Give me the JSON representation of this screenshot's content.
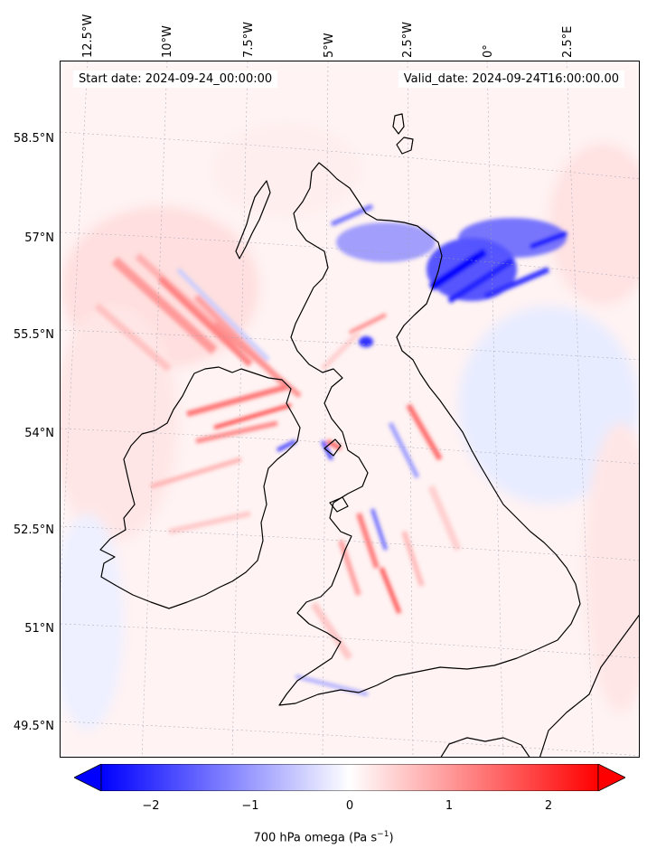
{
  "map": {
    "header_left": "Start date: 2024-09-24_00:00:00",
    "header_right": "Valid_date: 2024-09-24T16:00:00.00",
    "lon_labels": [
      "12.5°W",
      "10°W",
      "7.5°W",
      "5°W",
      "2.5°W",
      "0°",
      "2.5°E"
    ],
    "lat_labels": [
      "58.5°N",
      "57°N",
      "55.5°N",
      "54°N",
      "52.5°N",
      "51°N",
      "49.5°N"
    ],
    "colors": {
      "negative": "#0000ff",
      "neutral": "#ffffff",
      "positive": "#ff0000",
      "coastline": "#000000"
    }
  },
  "colorbar": {
    "ticks": [
      "−2",
      "−1",
      "0",
      "1",
      "2"
    ],
    "label": "700 hPa omega (Pa s",
    "label_exponent": "−1",
    "label_suffix": ")",
    "range": [
      -2.5,
      2.5
    ],
    "extend": "both"
  }
}
